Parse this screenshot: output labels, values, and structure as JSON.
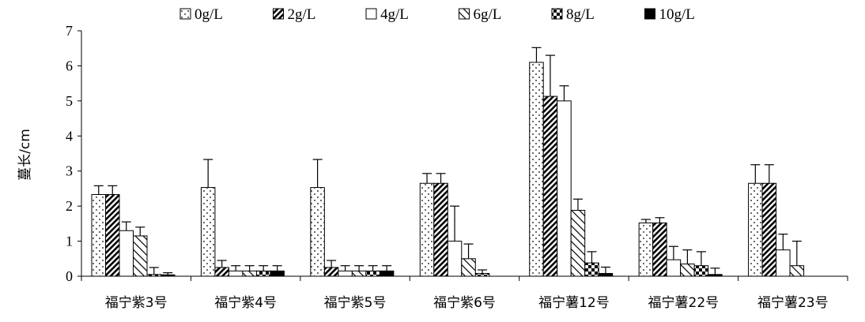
{
  "chart_data": {
    "type": "bar",
    "ylabel": "蔓长/cm",
    "xlabel": "",
    "ylim": [
      0,
      7
    ],
    "yticks": [
      0,
      1,
      2,
      3,
      4,
      5,
      6,
      7
    ],
    "legend_position": "top",
    "grid": false,
    "categories": [
      "福宁紫3号",
      "福宁紫4号",
      "福宁紫5号",
      "福宁紫6号",
      "福宁薯12号",
      "福宁薯22号",
      "福宁薯23号"
    ],
    "series": [
      {
        "name": "0g/L",
        "pattern": "dots",
        "values": [
          2.33,
          2.53,
          2.53,
          2.65,
          6.1,
          1.52,
          2.65
        ],
        "errors": [
          0.25,
          0.8,
          0.8,
          0.28,
          0.42,
          0.1,
          0.53
        ]
      },
      {
        "name": "2g/L",
        "pattern": "diag-dense",
        "values": [
          2.33,
          0.25,
          0.25,
          2.65,
          5.13,
          1.52,
          2.65
        ],
        "errors": [
          0.25,
          0.2,
          0.2,
          0.28,
          1.17,
          0.15,
          0.53
        ]
      },
      {
        "name": "4g/L",
        "pattern": "white",
        "values": [
          1.3,
          0.15,
          0.15,
          1.0,
          5.0,
          0.47,
          0.75
        ],
        "errors": [
          0.25,
          0.15,
          0.15,
          1.0,
          0.43,
          0.38,
          0.45
        ]
      },
      {
        "name": "6g/L",
        "pattern": "diag-sparse",
        "values": [
          1.15,
          0.15,
          0.15,
          0.5,
          1.88,
          0.35,
          0.3
        ],
        "errors": [
          0.25,
          0.15,
          0.15,
          0.42,
          0.32,
          0.4,
          0.7
        ]
      },
      {
        "name": "8g/L",
        "pattern": "checker",
        "values": [
          0.05,
          0.15,
          0.15,
          0.08,
          0.38,
          0.3,
          0
        ],
        "errors": [
          0.2,
          0.15,
          0.15,
          0.1,
          0.32,
          0.4,
          0
        ]
      },
      {
        "name": "10g/L",
        "pattern": "solid",
        "values": [
          0.04,
          0.15,
          0.15,
          0,
          0.08,
          0.05,
          0
        ],
        "errors": [
          0.06,
          0.15,
          0.15,
          0,
          0.18,
          0.18,
          0
        ]
      }
    ]
  }
}
